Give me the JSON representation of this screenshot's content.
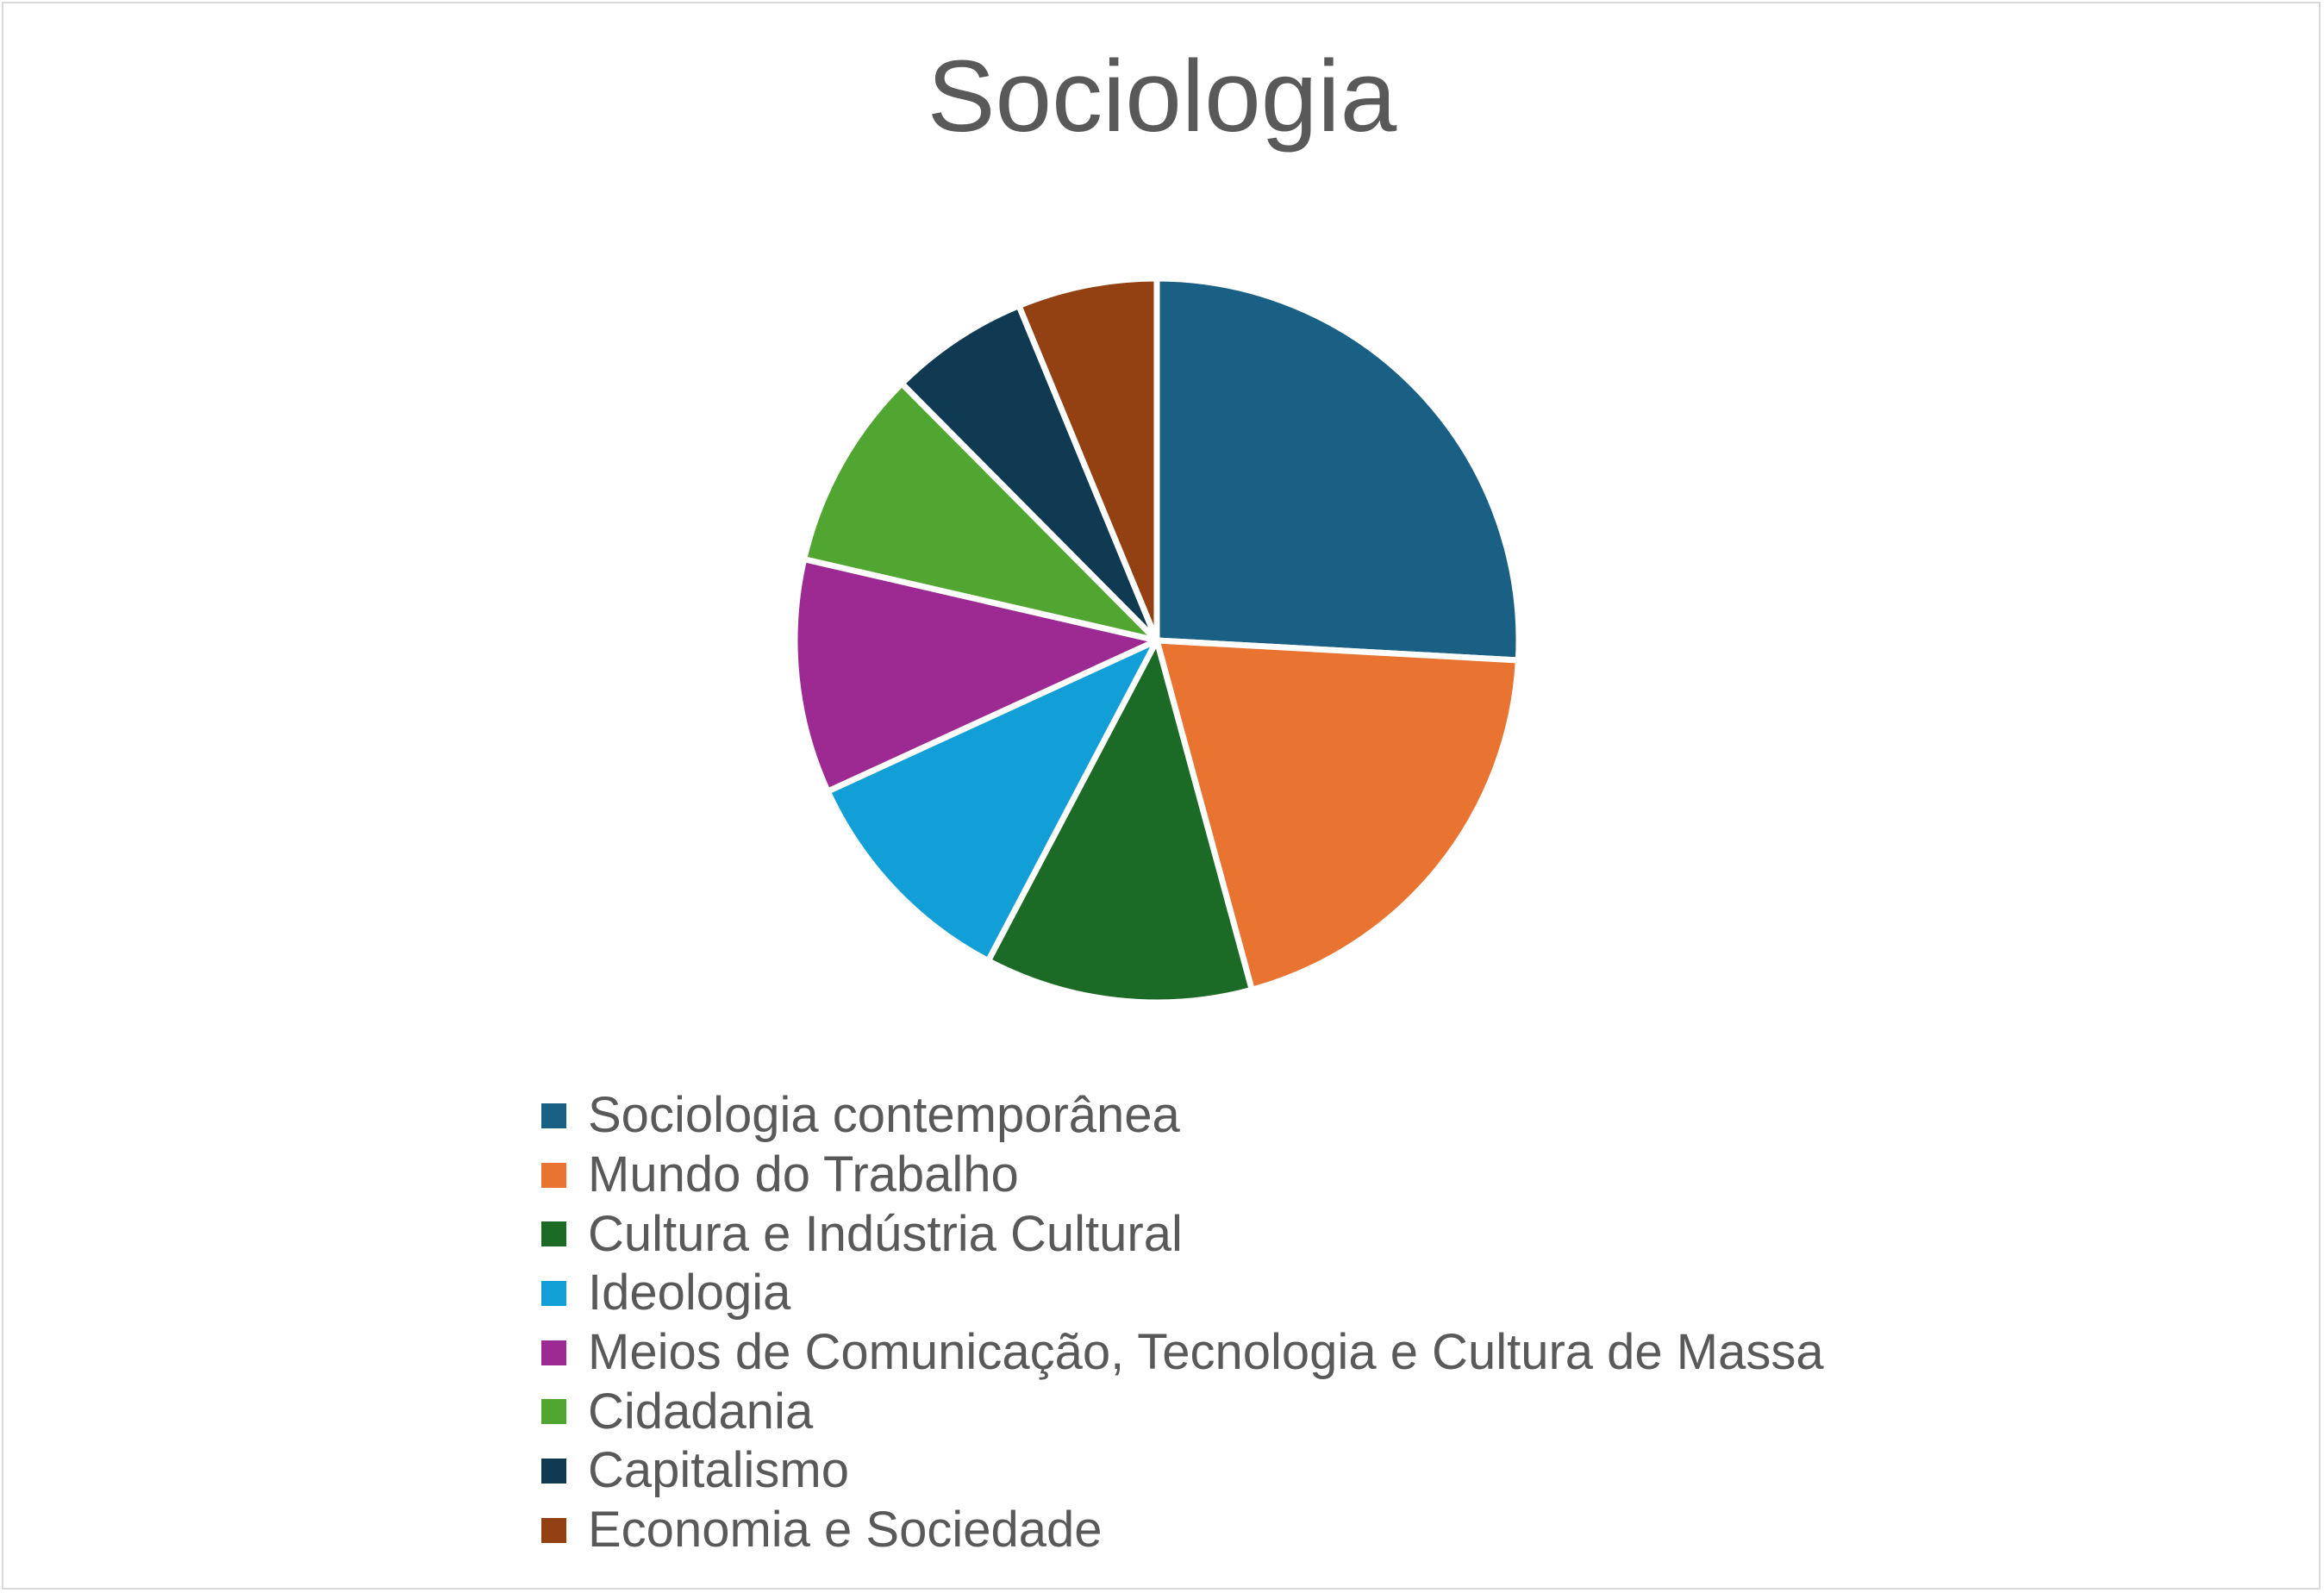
{
  "chart_data": {
    "type": "pie",
    "title": "Sociologia",
    "categories": [
      "Sociologia contemporânea",
      "Mundo do Trabalho",
      "Cultura e Indústria Cultural",
      "Ideologia",
      "Meios de Comunicação, Tecnologia e Cultura de Massa",
      "Cidadania",
      "Capitalismo",
      "Economia e Sociedade"
    ],
    "values": [
      26,
      20,
      12,
      10.5,
      10.5,
      9,
      6.25,
      6.25
    ],
    "colors": [
      "#1a6084",
      "#e97432",
      "#1b6b26",
      "#129fd7",
      "#9c2a92",
      "#51a631",
      "#0f3a52",
      "#934012"
    ],
    "legend_position": "bottom",
    "start_angle": "12 o'clock",
    "direction": "clockwise"
  }
}
